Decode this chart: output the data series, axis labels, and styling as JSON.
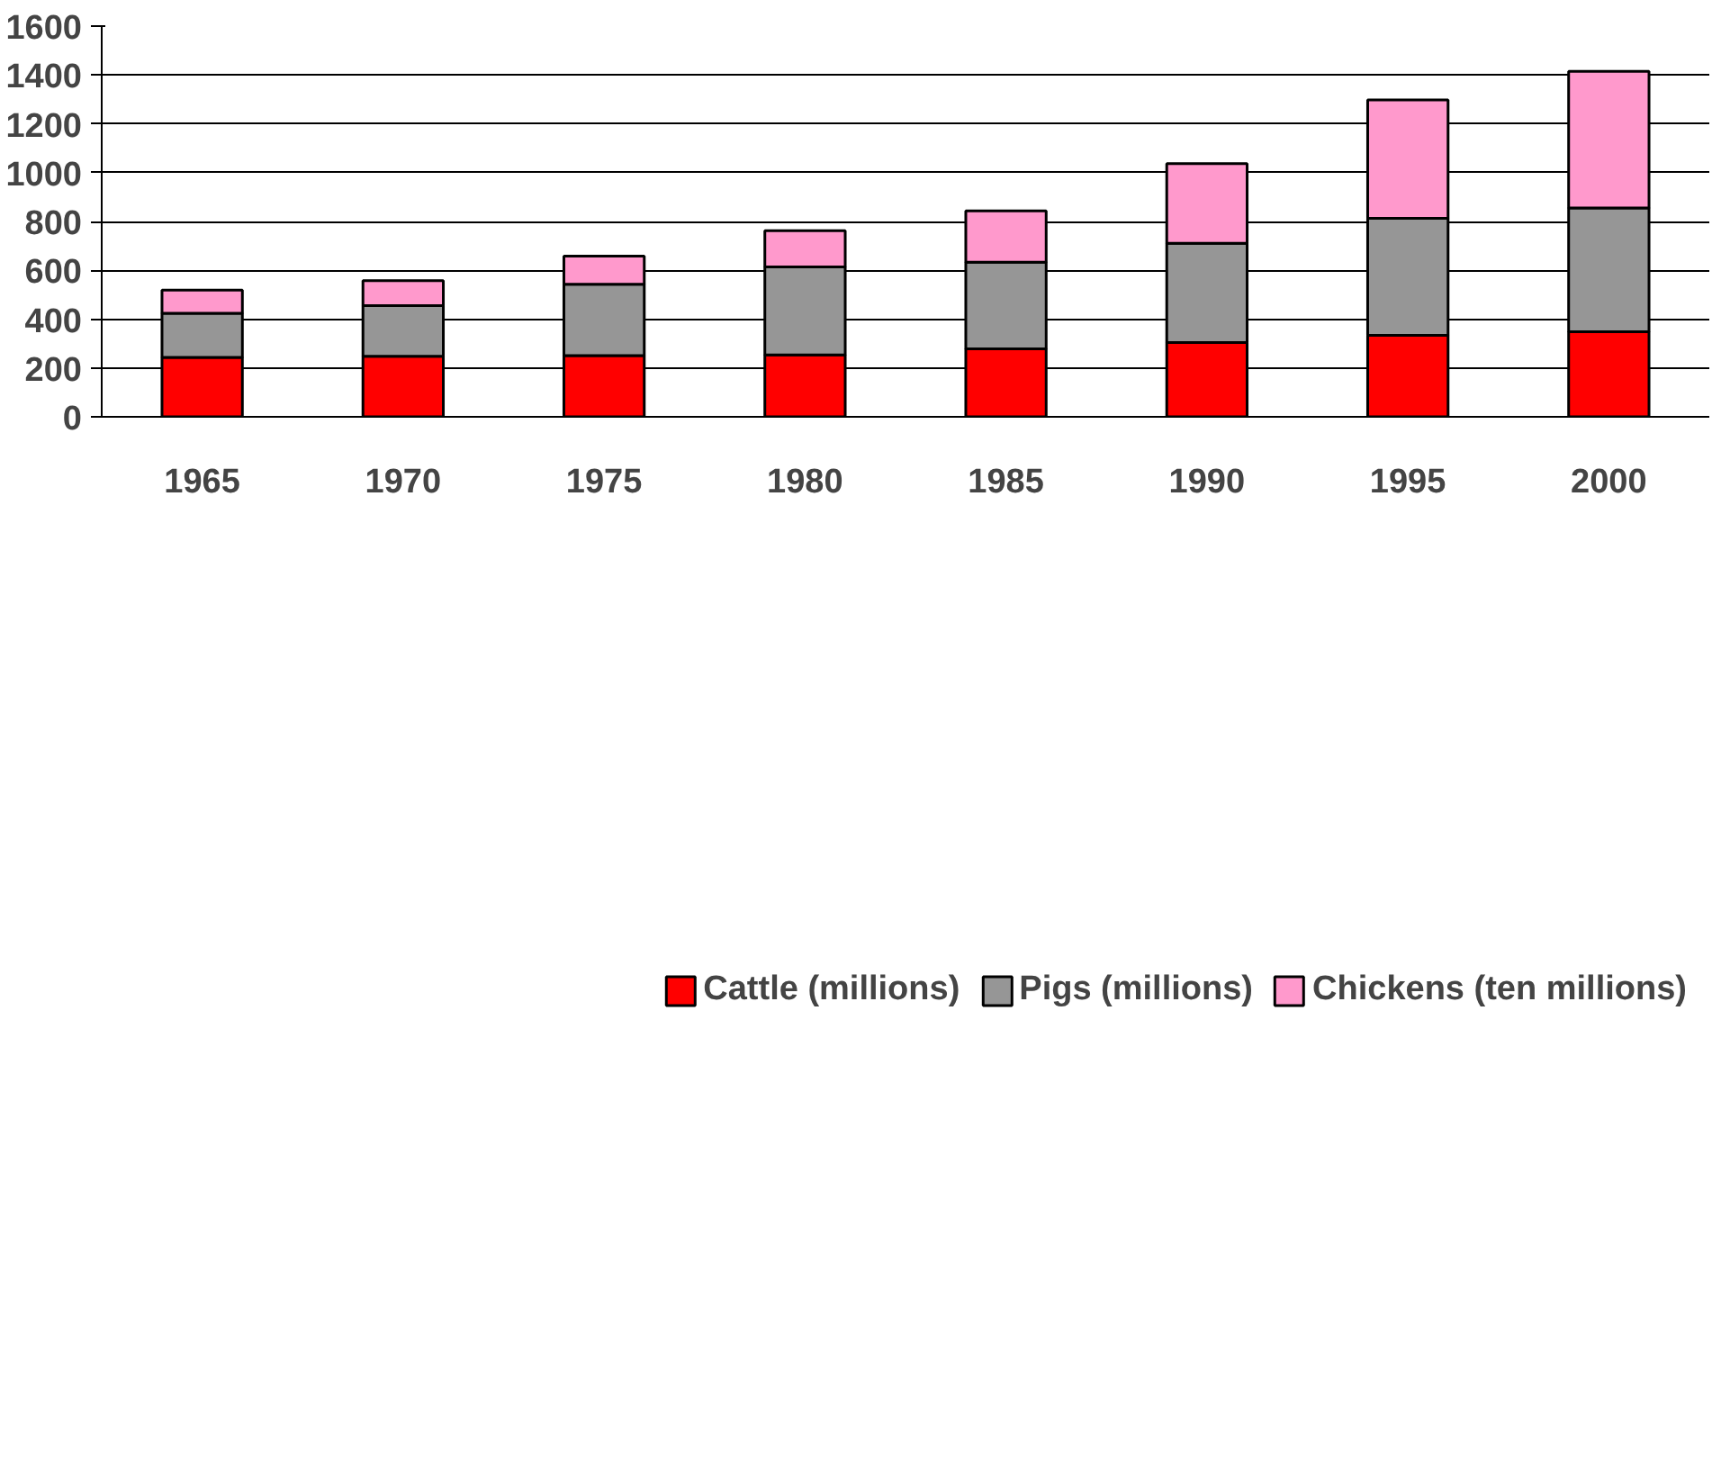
{
  "chart_data": {
    "type": "bar",
    "stacked": true,
    "categories": [
      "1965",
      "1970",
      "1975",
      "1980",
      "1985",
      "1990",
      "1995",
      "2000"
    ],
    "series": [
      {
        "name": "Cattle (millions)",
        "color": "#ff0000",
        "values": [
          243,
          248,
          251,
          253,
          278,
          304,
          334,
          348
        ]
      },
      {
        "name": "Pigs (millions)",
        "color": "#969696",
        "values": [
          181,
          207,
          292,
          361,
          355,
          407,
          479,
          507
        ]
      },
      {
        "name": "Chickens (ten millions)",
        "color": "#ff99cc",
        "values": [
          95,
          103,
          115,
          148,
          210,
          326,
          485,
          560
        ]
      }
    ],
    "ylim": [
      0,
      1600
    ],
    "yticks": [
      0,
      200,
      400,
      600,
      800,
      1000,
      1200,
      1400,
      1600
    ],
    "grid": "y",
    "legend": "bottom"
  }
}
